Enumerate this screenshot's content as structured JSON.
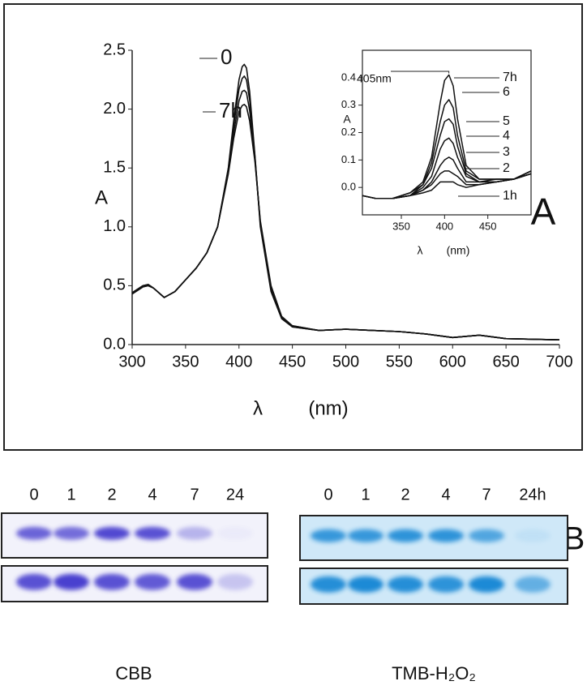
{
  "chart_data": [
    {
      "type": "line",
      "y_label": "A",
      "x_label": "λ",
      "x_unit": "(nm)",
      "x": [
        300,
        310,
        315,
        320,
        330,
        340,
        350,
        360,
        370,
        380,
        390,
        395,
        400,
        403,
        405,
        407,
        410,
        415,
        420,
        430,
        440,
        450,
        475,
        500,
        525,
        550,
        575,
        600,
        625,
        650,
        700
      ],
      "series": [
        {
          "name": "0",
          "color": "#111111",
          "values": [
            0.43,
            0.49,
            0.5,
            0.48,
            0.4,
            0.45,
            0.55,
            0.65,
            0.78,
            1.0,
            1.5,
            1.9,
            2.25,
            2.36,
            2.38,
            2.35,
            2.15,
            1.6,
            1.0,
            0.45,
            0.22,
            0.15,
            0.12,
            0.13,
            0.12,
            0.11,
            0.09,
            0.06,
            0.08,
            0.05,
            0.04
          ]
        },
        {
          "color": "#111111",
          "values": [
            0.43,
            0.49,
            0.5,
            0.48,
            0.4,
            0.45,
            0.55,
            0.65,
            0.78,
            1.0,
            1.49,
            1.86,
            2.17,
            2.26,
            2.28,
            2.25,
            2.08,
            1.59,
            1.02,
            0.47,
            0.23,
            0.15,
            0.12,
            0.13,
            0.12,
            0.11,
            0.09,
            0.06,
            0.08,
            0.05,
            0.04
          ]
        },
        {
          "color": "#111111",
          "values": [
            0.44,
            0.5,
            0.51,
            0.48,
            0.4,
            0.45,
            0.55,
            0.65,
            0.78,
            1.0,
            1.47,
            1.8,
            2.07,
            2.15,
            2.16,
            2.14,
            1.99,
            1.57,
            1.03,
            0.48,
            0.23,
            0.16,
            0.12,
            0.13,
            0.12,
            0.11,
            0.09,
            0.06,
            0.08,
            0.05,
            0.04
          ]
        },
        {
          "name": "7h",
          "color": "#111111",
          "values": [
            0.44,
            0.5,
            0.51,
            0.48,
            0.4,
            0.45,
            0.55,
            0.65,
            0.78,
            1.0,
            1.45,
            1.75,
            1.98,
            2.03,
            2.04,
            2.02,
            1.9,
            1.55,
            1.05,
            0.5,
            0.24,
            0.16,
            0.12,
            0.13,
            0.12,
            0.11,
            0.09,
            0.06,
            0.08,
            0.05,
            0.04
          ]
        }
      ],
      "xlim": [
        300,
        700
      ],
      "xticks": [
        300,
        350,
        400,
        450,
        500,
        550,
        600,
        650,
        700
      ],
      "ylim": [
        0,
        2.5
      ],
      "yticks": [
        {
          "value": 0,
          "label": "0.0"
        },
        0.5,
        {
          "value": 1,
          "label": "1.0"
        },
        1.5,
        {
          "value": 2,
          "label": "2.0"
        },
        2.5
      ]
    },
    {
      "type": "line",
      "y_label": "A",
      "x_label": "λ",
      "x_unit": "(nm)",
      "annotation": "405nm",
      "x": [
        305,
        320,
        340,
        360,
        375,
        385,
        395,
        400,
        405,
        410,
        415,
        425,
        440,
        460,
        480,
        500
      ],
      "series": [
        {
          "name": "7h",
          "color": "#111111",
          "values": [
            -0.03,
            -0.04,
            -0.04,
            -0.02,
            0.02,
            0.11,
            0.31,
            0.39,
            0.41,
            0.37,
            0.25,
            0.08,
            0.03,
            0.03,
            0.03,
            0.06
          ]
        },
        {
          "name": "6",
          "color": "#111111",
          "values": [
            -0.03,
            -0.04,
            -0.04,
            -0.02,
            0.01,
            0.09,
            0.24,
            0.3,
            0.32,
            0.29,
            0.19,
            0.06,
            0.03,
            0.03,
            0.03,
            0.06
          ]
        },
        {
          "name": "5",
          "color": "#111111",
          "values": [
            -0.03,
            -0.04,
            -0.04,
            -0.03,
            0.01,
            0.07,
            0.19,
            0.24,
            0.25,
            0.23,
            0.15,
            0.05,
            0.02,
            0.03,
            0.03,
            0.06
          ]
        },
        {
          "name": "4",
          "color": "#111111",
          "values": [
            -0.03,
            -0.04,
            -0.04,
            -0.03,
            0,
            0.04,
            0.14,
            0.17,
            0.18,
            0.16,
            0.11,
            0.04,
            0.02,
            0.02,
            0.03,
            0.05
          ]
        },
        {
          "name": "3",
          "color": "#111111",
          "values": [
            -0.03,
            -0.04,
            -0.04,
            -0.03,
            -0.01,
            0.02,
            0.08,
            0.1,
            0.11,
            0.1,
            0.07,
            0.02,
            0.02,
            0.02,
            0.03,
            0.05
          ]
        },
        {
          "name": "2",
          "color": "#111111",
          "values": [
            -0.03,
            -0.04,
            -0.04,
            -0.03,
            -0.01,
            0.01,
            0.05,
            0.06,
            0.06,
            0.05,
            0.04,
            0.01,
            0.01,
            0.02,
            0.03,
            0.05
          ]
        },
        {
          "name": "1h",
          "color": "#111111",
          "values": [
            -0.03,
            -0.04,
            -0.04,
            -0.03,
            -0.02,
            -0.01,
            0.02,
            0.02,
            0.02,
            0.02,
            0.01,
            0,
            0.01,
            0.02,
            0.03,
            0.05
          ]
        }
      ],
      "xlim": [
        305,
        500
      ],
      "xticks": [
        350,
        400,
        450
      ],
      "ylim": [
        -0.1,
        0.5
      ],
      "yticks": [
        {
          "value": 0,
          "label": "0.0"
        },
        0.1,
        0.2,
        0.3,
        0.4
      ]
    }
  ],
  "panels": {
    "a": "A",
    "b": "B"
  },
  "gels": {
    "left": {
      "lanes": [
        "0",
        "1",
        "2",
        "4",
        "7",
        "24"
      ],
      "caption": "CBB"
    },
    "right": {
      "lanes": [
        "0",
        "1",
        "2",
        "4",
        "7",
        "24h"
      ],
      "caption": "TMB-H₂O₂"
    }
  }
}
